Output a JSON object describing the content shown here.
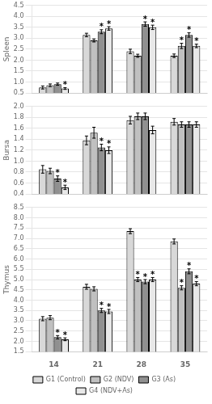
{
  "chart_data": [
    {
      "type": "bar",
      "ylabel": "Spleen",
      "categories": [
        "14",
        "21",
        "28",
        "35"
      ],
      "series": [
        {
          "name": "G1 (Control)",
          "color": "#d8d8d8",
          "values": [
            0.75,
            3.15,
            2.4,
            2.2
          ],
          "errors": [
            0.07,
            0.08,
            0.1,
            0.08
          ]
        },
        {
          "name": "G2 (NDV)",
          "color": "#c0c0c0",
          "values": [
            0.85,
            2.9,
            2.2,
            2.65
          ],
          "errors": [
            0.06,
            0.07,
            0.07,
            0.12
          ]
        },
        {
          "name": "G3 (As)",
          "color": "#909090",
          "values": [
            0.9,
            3.3,
            3.65,
            3.15
          ],
          "errors": [
            0.05,
            0.09,
            0.1,
            0.1
          ]
        },
        {
          "name": "G4 (NDV+As)",
          "color": "#e8e8e8",
          "values": [
            0.7,
            3.45,
            3.5,
            2.65
          ],
          "errors": [
            0.04,
            0.08,
            0.1,
            0.08
          ]
        }
      ],
      "annotations": [
        {
          "text": "*",
          "x": "14",
          "series": "G4 (NDV+As)"
        },
        {
          "text": "*",
          "x": "21",
          "series": "G3 (As)"
        },
        {
          "text": "*",
          "x": "21",
          "series": "G4 (NDV+As)"
        },
        {
          "text": "*",
          "x": "28",
          "series": "G3 (As)"
        },
        {
          "text": "*",
          "x": "28",
          "series": "G4 (NDV+As)"
        },
        {
          "text": "*",
          "x": "35",
          "series": "G2 (NDV)"
        },
        {
          "text": "*",
          "x": "35",
          "series": "G3 (As)"
        },
        {
          "text": "*",
          "x": "35",
          "series": "G4 (NDV+As)"
        }
      ],
      "ylim": [
        0.5,
        4.5
      ],
      "yticks": [
        0.5,
        {
          "value": 1.0,
          "label": "1.0"
        },
        1.5,
        {
          "value": 2.0,
          "label": "2.0"
        },
        2.5,
        {
          "value": 3.0,
          "label": "3.0"
        },
        3.5,
        {
          "value": 4.0,
          "label": "4.0"
        },
        4.5
      ],
      "grid": true,
      "tick_labels": "y"
    },
    {
      "type": "bar",
      "ylabel": "Bursa",
      "categories": [
        "14",
        "21",
        "28",
        "35"
      ],
      "series": [
        {
          "name": "G1 (Control)",
          "color": "#d8d8d8",
          "values": [
            0.85,
            1.38,
            1.75,
            1.72
          ],
          "errors": [
            0.07,
            0.08,
            0.07,
            0.06
          ]
        },
        {
          "name": "G2 (NDV)",
          "color": "#c0c0c0",
          "values": [
            0.82,
            1.52,
            1.82,
            1.67
          ],
          "errors": [
            0.05,
            0.1,
            0.06,
            0.05
          ]
        },
        {
          "name": "G3 (As)",
          "color": "#909090",
          "values": [
            0.68,
            1.25,
            1.82,
            1.67
          ],
          "errors": [
            0.05,
            0.06,
            0.06,
            0.05
          ]
        },
        {
          "name": "G4 (NDV+As)",
          "color": "#e8e8e8",
          "values": [
            0.52,
            1.2,
            1.57,
            1.67
          ],
          "errors": [
            0.04,
            0.06,
            0.07,
            0.05
          ]
        }
      ],
      "annotations": [
        {
          "text": "*",
          "x": "14",
          "series": "G3 (As)"
        },
        {
          "text": "*",
          "x": "14",
          "series": "G4 (NDV+As)"
        },
        {
          "text": "*",
          "x": "21",
          "series": "G3 (As)"
        },
        {
          "text": "*",
          "x": "21",
          "series": "G4 (NDV+As)"
        }
      ],
      "ylim": [
        0.4,
        2.0
      ],
      "yticks": [
        0.4,
        0.6,
        0.8,
        {
          "value": 1.0,
          "label": "1.0"
        },
        1.2,
        1.4,
        1.6,
        1.8,
        {
          "value": 2.0,
          "label": "2.0"
        }
      ],
      "grid": true,
      "tick_labels": "y"
    },
    {
      "type": "bar",
      "ylabel": "Thymus",
      "categories": [
        "14",
        "21",
        "28",
        "35"
      ],
      "series": [
        {
          "name": "G1 (Control)",
          "color": "#d8d8d8",
          "values": [
            3.1,
            4.65,
            7.35,
            6.85
          ],
          "errors": [
            0.1,
            0.12,
            0.12,
            0.12
          ]
        },
        {
          "name": "G2 (NDV)",
          "color": "#c0c0c0",
          "values": [
            3.15,
            4.55,
            5.0,
            4.6
          ],
          "errors": [
            0.1,
            0.1,
            0.1,
            0.1
          ]
        },
        {
          "name": "G3 (As)",
          "color": "#909090",
          "values": [
            2.2,
            3.5,
            4.9,
            5.4
          ],
          "errors": [
            0.08,
            0.1,
            0.1,
            0.12
          ]
        },
        {
          "name": "G4 (NDV+As)",
          "color": "#e8e8e8",
          "values": [
            2.1,
            3.45,
            5.0,
            4.8
          ],
          "errors": [
            0.07,
            0.1,
            0.1,
            0.1
          ]
        }
      ],
      "annotations": [
        {
          "text": "*",
          "x": "14",
          "series": "G3 (As)"
        },
        {
          "text": "*",
          "x": "14",
          "series": "G4 (NDV+As)"
        },
        {
          "text": "*",
          "x": "21",
          "series": "G3 (As)"
        },
        {
          "text": "*",
          "x": "21",
          "series": "G4 (NDV+As)"
        },
        {
          "text": "*",
          "x": "28",
          "series": "G2 (NDV)"
        },
        {
          "text": "*",
          "x": "28",
          "series": "G3 (As)"
        },
        {
          "text": "*",
          "x": "28",
          "series": "G4 (NDV+As)"
        },
        {
          "text": "*",
          "x": "35",
          "series": "G2 (NDV)"
        },
        {
          "text": "*",
          "x": "35",
          "series": "G3 (As)"
        },
        {
          "text": "*",
          "x": "35",
          "series": "G4 (NDV+As)"
        }
      ],
      "ylim": [
        1.5,
        8.5
      ],
      "yticks": [
        1.5,
        {
          "value": 2.0,
          "label": "2.0"
        },
        2.5,
        {
          "value": 3.0,
          "label": "3.0"
        },
        3.5,
        {
          "value": 4.0,
          "label": "4.0"
        },
        4.5,
        {
          "value": 5.0,
          "label": "5.0"
        },
        5.5,
        {
          "value": 6.0,
          "label": "6.0"
        },
        6.5,
        {
          "value": 7.0,
          "label": "7.0"
        },
        7.5,
        {
          "value": 8.0,
          "label": "8.0"
        },
        8.5
      ],
      "grid": true,
      "legend": "bottom"
    }
  ]
}
